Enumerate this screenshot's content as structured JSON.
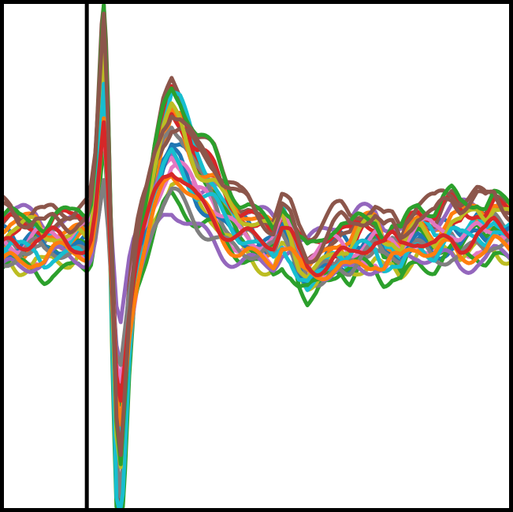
{
  "chart_data": {
    "type": "line",
    "title": "",
    "xlabel": "",
    "ylabel": "",
    "x_range": [
      -0.2,
      1.0
    ],
    "y_range": [
      -1.0,
      1.0
    ],
    "event_marker_x": 0.0,
    "grid": false,
    "legend": "none",
    "axes_frame": true,
    "template": {
      "x": [
        -0.2,
        -0.18,
        -0.16,
        -0.14,
        -0.12,
        -0.1,
        -0.08,
        -0.06,
        -0.04,
        -0.02,
        0.0,
        0.01,
        0.02,
        0.03,
        0.04,
        0.05,
        0.06,
        0.07,
        0.08,
        0.09,
        0.1,
        0.11,
        0.12,
        0.13,
        0.14,
        0.16,
        0.18,
        0.2,
        0.22,
        0.24,
        0.26,
        0.28,
        0.3,
        0.32,
        0.34,
        0.36,
        0.38,
        0.4,
        0.42,
        0.44,
        0.46,
        0.48,
        0.5,
        0.52,
        0.54,
        0.56,
        0.58,
        0.6,
        0.62,
        0.64,
        0.66,
        0.68,
        0.7,
        0.72,
        0.74,
        0.76,
        0.78,
        0.8,
        0.82,
        0.84,
        0.86,
        0.88,
        0.9,
        0.92,
        0.94,
        0.96,
        0.98,
        1.0
      ],
      "y": [
        0.0,
        0.01,
        -0.01,
        0.0,
        0.02,
        -0.01,
        0.01,
        0.0,
        -0.01,
        0.01,
        0.0,
        0.05,
        0.22,
        0.52,
        0.82,
        0.38,
        -0.3,
        -0.85,
        -1.0,
        -0.72,
        -0.42,
        -0.22,
        -0.08,
        0.02,
        0.1,
        0.28,
        0.42,
        0.5,
        0.46,
        0.38,
        0.3,
        0.26,
        0.22,
        0.15,
        0.1,
        0.06,
        0.05,
        0.02,
        0.0,
        -0.02,
        0.08,
        0.02,
        -0.1,
        -0.16,
        -0.14,
        -0.1,
        -0.06,
        -0.04,
        -0.06,
        -0.02,
        0.0,
        0.02,
        -0.04,
        -0.02,
        -0.06,
        0.0,
        0.04,
        0.02,
        0.0,
        0.04,
        0.06,
        0.03,
        0.05,
        0.08,
        0.06,
        0.1,
        0.07,
        0.05
      ]
    },
    "series": [
      {
        "color": "#1f77b4",
        "scale": 0.84,
        "offset": -0.04,
        "phase": 0.3
      },
      {
        "color": "#ff7f0e",
        "scale": 1.02,
        "offset": -0.06,
        "phase": 1.1
      },
      {
        "color": "#2ca02c",
        "scale": 1.18,
        "offset": -0.09,
        "phase": 2.0
      },
      {
        "color": "#d62728",
        "scale": 1.06,
        "offset": -0.02,
        "phase": 2.7
      },
      {
        "color": "#9467bd",
        "scale": 0.46,
        "offset": 0.04,
        "phase": 3.4
      },
      {
        "color": "#8c564b",
        "scale": 1.12,
        "offset": 0.02,
        "phase": 4.1
      },
      {
        "color": "#e377c2",
        "scale": 0.74,
        "offset": -0.1,
        "phase": 4.9
      },
      {
        "color": "#7f7f7f",
        "scale": 0.92,
        "offset": -0.07,
        "phase": 5.6
      },
      {
        "color": "#bcbd22",
        "scale": 0.64,
        "offset": -0.12,
        "phase": 0.8
      },
      {
        "color": "#17becf",
        "scale": 1.1,
        "offset": -0.05,
        "phase": 1.6
      },
      {
        "color": "#1f77b4",
        "scale": 0.7,
        "offset": -0.08,
        "phase": 2.4
      },
      {
        "color": "#ff7f0e",
        "scale": 0.88,
        "offset": 0.0,
        "phase": 3.1
      },
      {
        "color": "#2ca02c",
        "scale": 0.58,
        "offset": -0.15,
        "phase": 3.9
      },
      {
        "color": "#d62728",
        "scale": 0.82,
        "offset": 0.03,
        "phase": 4.6
      },
      {
        "color": "#9467bd",
        "scale": 0.36,
        "offset": -0.13,
        "phase": 5.3
      },
      {
        "color": "#8c564b",
        "scale": 0.68,
        "offset": 0.08,
        "phase": 0.5
      },
      {
        "color": "#e377c2",
        "scale": 0.52,
        "offset": -0.03,
        "phase": 1.3
      },
      {
        "color": "#7f7f7f",
        "scale": 0.42,
        "offset": -0.1,
        "phase": 2.2
      },
      {
        "color": "#bcbd22",
        "scale": 0.94,
        "offset": -0.02,
        "phase": 2.9
      },
      {
        "color": "#17becf",
        "scale": 0.78,
        "offset": -0.09,
        "phase": 3.7
      },
      {
        "color": "#2ca02c",
        "scale": 0.98,
        "offset": 0.05,
        "phase": 4.4
      },
      {
        "color": "#ff7f0e",
        "scale": 0.62,
        "offset": -0.11,
        "phase": 5.1
      },
      {
        "color": "#d62728",
        "scale": 0.56,
        "offset": -0.06,
        "phase": 5.9
      },
      {
        "color": "#8c564b",
        "scale": 0.9,
        "offset": 0.04,
        "phase": 0.1
      }
    ]
  }
}
